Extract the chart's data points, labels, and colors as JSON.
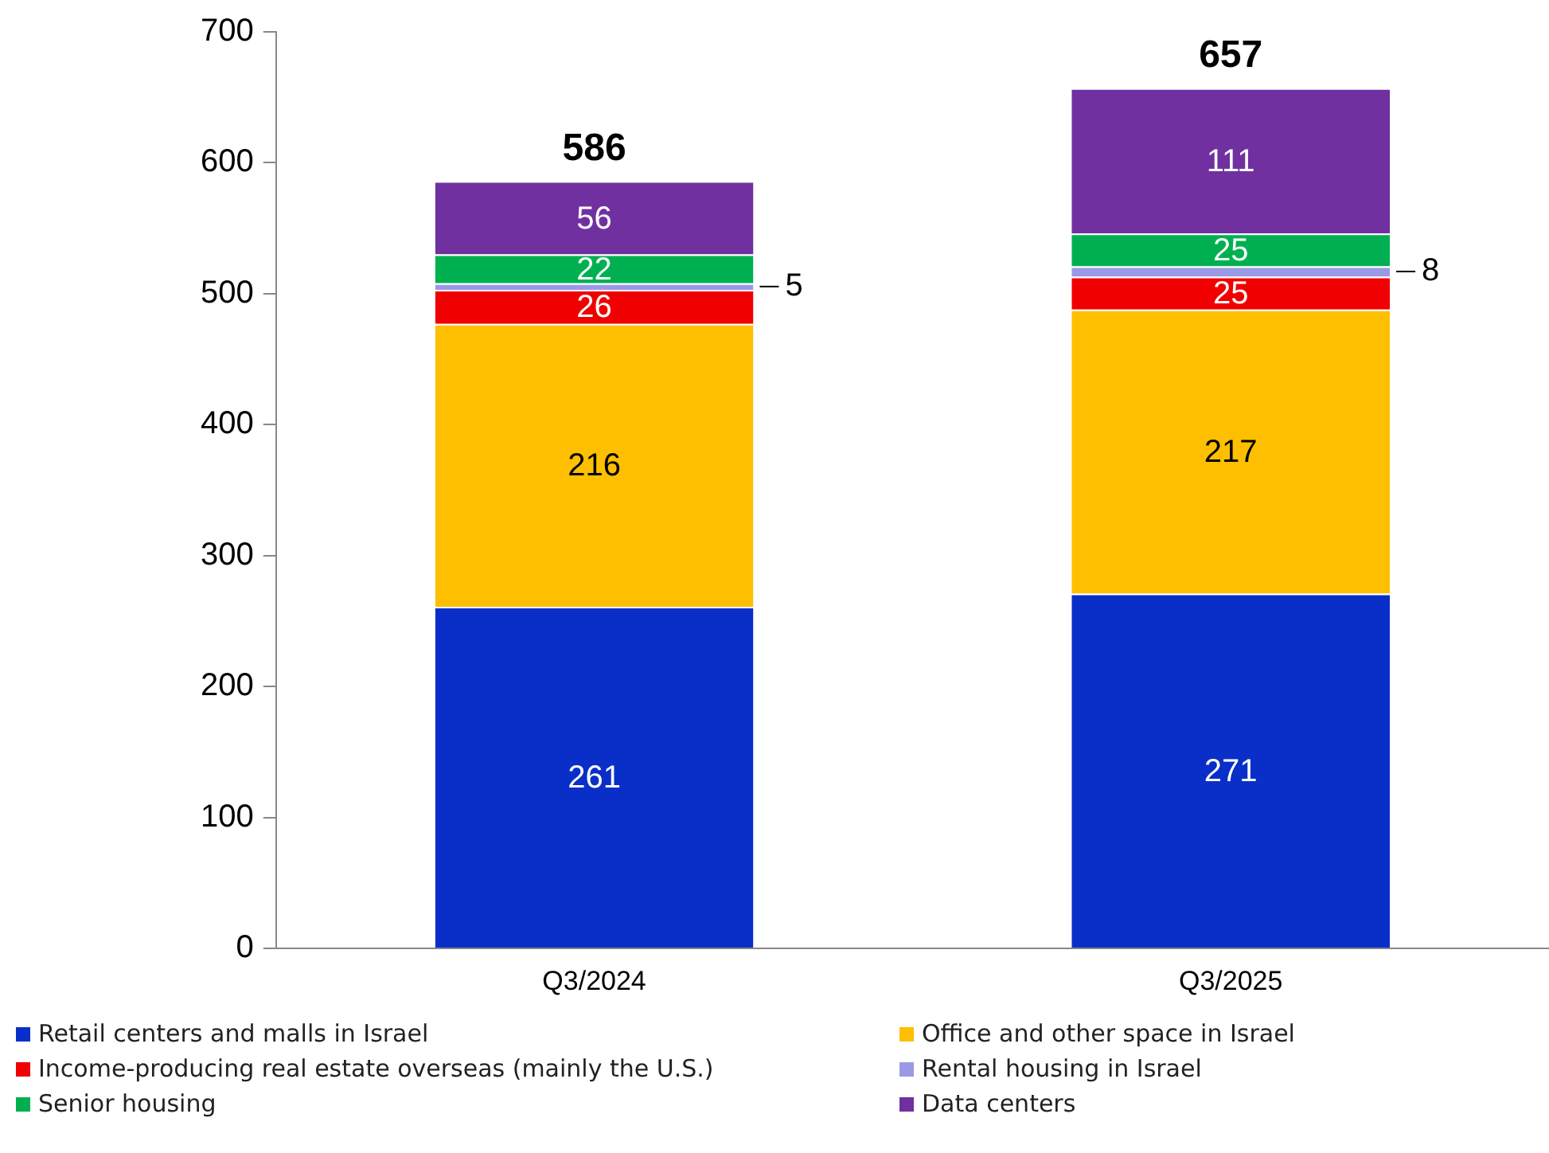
{
  "chart_data": {
    "type": "bar",
    "stacked": true,
    "categories": [
      "Q3/2024",
      "Q3/2025"
    ],
    "series": [
      {
        "name": "Retail centers and malls in Israel",
        "color": "#0a2fc8",
        "values": [
          261,
          271
        ]
      },
      {
        "name": "Office and other space in Israel",
        "color": "#fdbf00",
        "values": [
          216,
          217
        ]
      },
      {
        "name": "Income-producing real estate overseas (mainly the U.S.)",
        "color": "#f00000",
        "values": [
          26,
          25
        ]
      },
      {
        "name": "Rental housing in Israel",
        "color": "#9b99e6",
        "values": [
          5,
          8
        ]
      },
      {
        "name": "Senior housing",
        "color": "#00b050",
        "values": [
          22,
          25
        ]
      },
      {
        "name": "Data centers",
        "color": "#7030a0",
        "values": [
          56,
          111
        ]
      }
    ],
    "ylim": [
      0,
      700
    ],
    "yticks": [
      0,
      100,
      200,
      300,
      400,
      500,
      600,
      700
    ],
    "grid": false,
    "legend": "bottom",
    "data_labels": true,
    "totals": [
      "586",
      "657"
    ]
  }
}
